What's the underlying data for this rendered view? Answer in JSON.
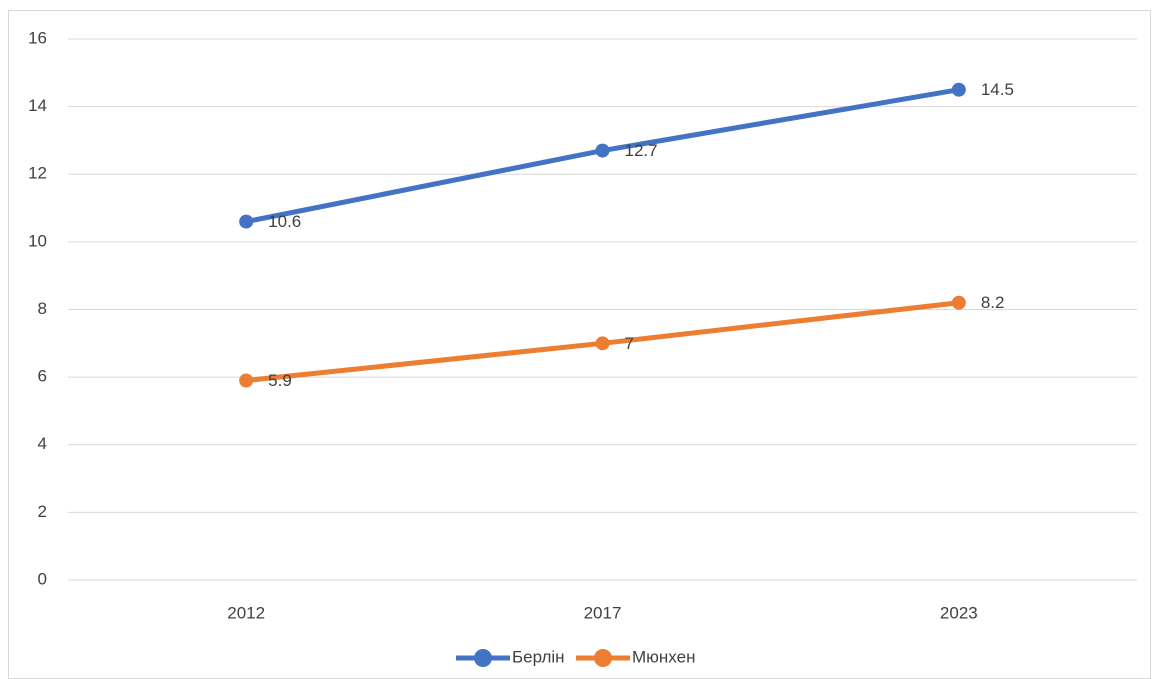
{
  "chart_data": {
    "type": "line",
    "categories": [
      "2012",
      "2017",
      "2023"
    ],
    "series": [
      {
        "name": "Берлін",
        "color": "#4472c4",
        "values": [
          10.6,
          12.7,
          14.5
        ]
      },
      {
        "name": "Мюнхен",
        "color": "#ed7d31",
        "values": [
          5.9,
          7,
          8.2
        ]
      }
    ],
    "ylim": [
      0,
      16
    ],
    "yticks": [
      0,
      2,
      4,
      6,
      8,
      10,
      12,
      14,
      16
    ],
    "grid": true,
    "legend": "bottom"
  }
}
